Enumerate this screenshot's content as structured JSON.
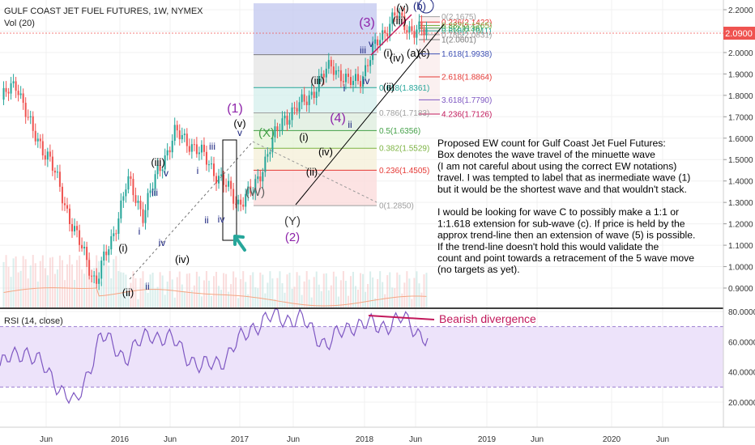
{
  "header": {
    "title": "GULF COAST JET FUEL FUTURES, 1W, NYMEX",
    "volume": "Vol (20)"
  },
  "price_axis": {
    "ticks": [
      "2.2000",
      "2.1000",
      "2.0000",
      "1.9000",
      "1.8000",
      "1.7000",
      "1.6000",
      "1.5000",
      "1.4000",
      "1.3000",
      "1.2000",
      "1.1000",
      "1.0000",
      "0.9000"
    ],
    "current_price": "2.0900"
  },
  "rsi": {
    "label": "RSI (14, close)",
    "ticks": [
      "80.0000",
      "60.0000",
      "40.0000",
      "20.0000"
    ],
    "upper_band": 70,
    "lower_band": 30,
    "annotation": "Bearish divergence"
  },
  "x_axis": {
    "ticks": [
      "Jun",
      "2016",
      "Jun",
      "2017",
      "Jun",
      "2018",
      "Jun",
      "2019",
      "Jun",
      "2020",
      "Jun"
    ]
  },
  "fib_upper": [
    {
      "label": "0(2.1675)",
      "price": 2.1675,
      "color": "#9e9e9e"
    },
    {
      "label": "0.236(2.1422)",
      "price": 2.1422,
      "color": "#e53935"
    },
    {
      "label": "0.382(2.1265)",
      "price": 2.1265,
      "color": "#7cb342"
    },
    {
      "label": "0.5(2.1138)",
      "price": 2.1138,
      "color": "#43a047"
    },
    {
      "label": "0.618(2.1011)",
      "price": 2.1011,
      "color": "#26a69a"
    },
    {
      "label": "0.786(2.0831)",
      "price": 2.0831,
      "color": "#9e9e9e"
    },
    {
      "label": "1(2.0601)",
      "price": 2.0601,
      "color": "#7b7b7b"
    },
    {
      "label": "1.618(1.9938)",
      "price": 1.9938,
      "color": "#3f51b5"
    },
    {
      "label": "2.618(1.8864)",
      "price": 1.8864,
      "color": "#e53935"
    },
    {
      "label": "3.618(1.7790)",
      "price": 1.779,
      "color": "#7e57c2"
    },
    {
      "label": "4.236(1.7126)",
      "price": 1.7126,
      "color": "#c2185b"
    }
  ],
  "fib_lower": [
    {
      "label": "0.618(1.8361)",
      "price": 1.8361,
      "color": "#26a69a"
    },
    {
      "label": "0.786(1.7183)",
      "price": 1.7183,
      "color": "#9e9e9e"
    },
    {
      "label": "0.5(1.6356)",
      "price": 1.6356,
      "color": "#43a047"
    },
    {
      "label": "0.382(1.5529)",
      "price": 1.5529,
      "color": "#7cb342"
    },
    {
      "label": "0.236(1.4505)",
      "price": 1.4505,
      "color": "#e53935"
    },
    {
      "label": "0(1.2850)",
      "price": 1.285,
      "color": "#9e9e9e"
    }
  ],
  "wave_labels": [
    {
      "text": "(i)",
      "color": "#000000"
    },
    {
      "text": "(ii)",
      "color": "#000000"
    },
    {
      "text": "(iii)",
      "color": "#000000"
    },
    {
      "text": "(iv)",
      "color": "#000000"
    },
    {
      "text": "(v)",
      "color": "#000000"
    },
    {
      "text": "i",
      "color": "#1a237e"
    },
    {
      "text": "ii",
      "color": "#1a237e"
    },
    {
      "text": "iii",
      "color": "#1a237e"
    },
    {
      "text": "iv",
      "color": "#1a237e"
    },
    {
      "text": "v",
      "color": "#1a237e"
    },
    {
      "text": "i",
      "color": "#1a237e"
    },
    {
      "text": "ii",
      "color": "#1a237e"
    },
    {
      "text": "iii",
      "color": "#1a237e"
    },
    {
      "text": "iv",
      "color": "#1a237e"
    },
    {
      "text": "v",
      "color": "#1a237e"
    },
    {
      "text": "(1)",
      "color": "#8e24aa"
    },
    {
      "text": "(X)",
      "color": "#43a047"
    },
    {
      "text": "(W)",
      "color": "#616161"
    },
    {
      "text": "(Y)",
      "color": "#424242"
    },
    {
      "text": "(2)",
      "color": "#8e24aa"
    },
    {
      "text": "(i)",
      "color": "#000000"
    },
    {
      "text": "(ii)",
      "color": "#000000"
    },
    {
      "text": "(iii)",
      "color": "#000000"
    },
    {
      "text": "(iv)",
      "color": "#000000"
    },
    {
      "text": "i",
      "color": "#1a237e"
    },
    {
      "text": "ii",
      "color": "#1a237e"
    },
    {
      "text": "iii",
      "color": "#1a237e"
    },
    {
      "text": "iv",
      "color": "#1a237e"
    },
    {
      "text": "v",
      "color": "#1a237e"
    },
    {
      "text": "(3)",
      "color": "#8e24aa"
    },
    {
      "text": "(4)",
      "color": "#8e24aa"
    },
    {
      "text": "(iii)",
      "color": "#000000"
    },
    {
      "text": "(v)",
      "color": "#000000"
    },
    {
      "text": "(i)",
      "color": "#000000"
    },
    {
      "text": "(ii)",
      "color": "#000000"
    },
    {
      "text": "(iv)",
      "color": "#000000"
    },
    {
      "text": "(a)",
      "color": "#000000"
    },
    {
      "text": "(b)",
      "color": "#1a237e"
    },
    {
      "text": "(c)",
      "color": "#000000"
    }
  ],
  "annotation_text": [
    "Proposed EW count for Gulf Coast Jet Fuel Futures:",
    "Box denotes the wave travel of the minuette wave",
    "(I am not careful about using the correct EW notations)",
    "travel. I was tempted to label that as inermediate wave (1)",
    "but it would be the shortest wave and that wouldn't stack.",
    "",
    "I would be looking for wave C to possibly make a 1:1 or",
    "1:1.618 extension for sub-wave (c). If price is held by the",
    "approx trend-line then an extension of wave (5) is possible.",
    "If the trend-line doesn't hold this would validate the",
    "count and point towards a retracement of the 5 wave move",
    "(no targets as yet)."
  ],
  "colors": {
    "up": "#26a69a",
    "down": "#ef5350",
    "rsi_line": "#7e57c2",
    "rsi_band": "#ede3fa",
    "price_tag": "#ef5350",
    "divergence": "#c2185b"
  },
  "chart_data": [
    {
      "type": "candlestick",
      "title": "GULF COAST JET FUEL FUTURES, 1W, NYMEX",
      "ylim": [
        0.85,
        2.23
      ],
      "x": [
        "2015-04",
        "2015-06",
        "2015-08",
        "2015-10",
        "2015-12",
        "2016-01",
        "2016-02",
        "2016-04",
        "2016-06",
        "2016-08",
        "2016-10",
        "2016-12",
        "2017-01",
        "2017-03",
        "2017-05",
        "2017-06",
        "2017-07",
        "2017-08",
        "2017-09",
        "2017-10",
        "2017-12",
        "2018-01",
        "2018-02",
        "2018-03",
        "2018-04",
        "2018-05",
        "2018-06",
        "2018-07"
      ],
      "series": [
        {
          "name": "close",
          "values": [
            1.78,
            1.86,
            1.62,
            1.52,
            1.3,
            1.1,
            0.93,
            1.12,
            1.4,
            1.25,
            1.45,
            1.62,
            1.58,
            1.5,
            1.4,
            1.3,
            1.35,
            1.55,
            1.7,
            1.75,
            1.84,
            1.95,
            1.85,
            1.9,
            2.07,
            2.17,
            2.11,
            2.09
          ]
        }
      ]
    },
    {
      "type": "line",
      "title": "RSI (14, close)",
      "ylim": [
        0,
        85
      ],
      "x": [
        "2015-04",
        "2015-07",
        "2015-10",
        "2016-01",
        "2016-04",
        "2016-07",
        "2016-10",
        "2017-01",
        "2017-04",
        "2017-07",
        "2017-10",
        "2018-01",
        "2018-02",
        "2018-03",
        "2018-04",
        "2018-05",
        "2018-06",
        "2018-07"
      ],
      "series": [
        {
          "name": "RSI",
          "values": [
            44,
            55,
            38,
            17,
            64,
            50,
            66,
            59,
            42,
            50,
            70,
            77,
            74,
            58,
            72,
            70,
            75,
            62
          ]
        }
      ]
    }
  ]
}
